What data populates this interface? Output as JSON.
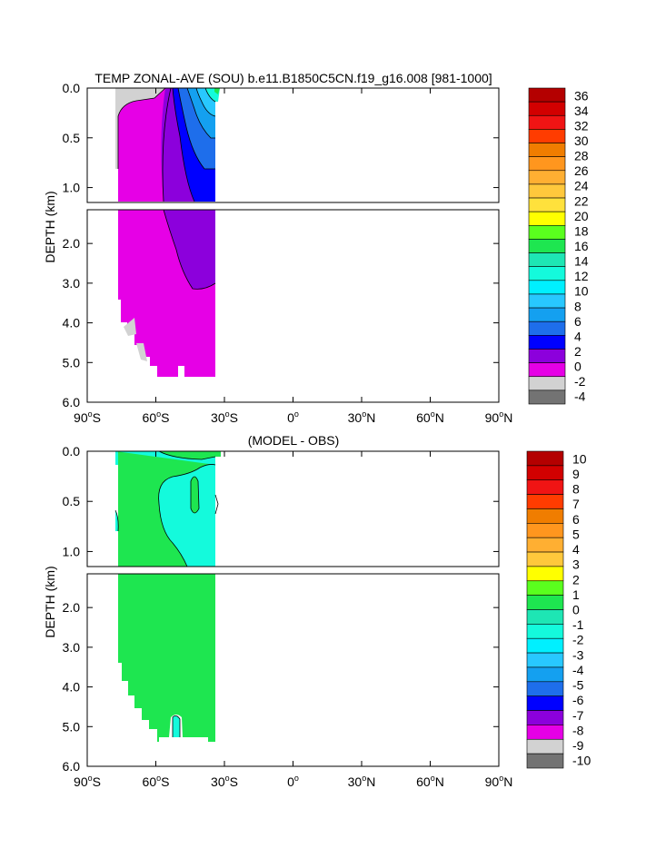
{
  "chart_data": [
    {
      "type": "heatmap",
      "title": "TEMP ZONAL-AVE (SOU) b.e11.B1850C5CN.f19_g16.008 [981-1000]",
      "ylabel": "DEPTH (km)",
      "xlabel": "",
      "x_ticks": [
        "90°S",
        "60°S",
        "30°S",
        "0°",
        "30°N",
        "60°N",
        "90°N"
      ],
      "x_range": [
        -90,
        90
      ],
      "y_range_km": [
        0,
        6
      ],
      "y_ticks_upper": [
        "0.0",
        "0.5",
        "1.0"
      ],
      "y_ticks_lower": [
        "2.0",
        "3.0",
        "4.0",
        "5.0",
        "6.0"
      ],
      "y_split_km": 1.15,
      "data_lat_range": [
        -78,
        -34
      ],
      "colorbar": {
        "labels": [
          "36",
          "34",
          "32",
          "30",
          "28",
          "26",
          "24",
          "22",
          "20",
          "18",
          "16",
          "14",
          "12",
          "10",
          "8",
          "6",
          "4",
          "2",
          "0",
          "-2",
          "-4"
        ],
        "colors": [
          "#b40000",
          "#d20000",
          "#f01414",
          "#ff3c00",
          "#f07d00",
          "#ff961e",
          "#ffaf32",
          "#ffc83c",
          "#ffe13c",
          "#ffff00",
          "#5aff1e",
          "#1ee650",
          "#1ee6b4",
          "#14fadc",
          "#00f0ff",
          "#28c8ff",
          "#14a0f0",
          "#1e6eeb",
          "#0000ff",
          "#8c00dc",
          "#e600e6",
          "#d2d2d2",
          "#737373"
        ]
      },
      "fields": [
        {
          "name": "0 to 2",
          "color": "#e600e6"
        },
        {
          "name": "2 to 4",
          "color": "#8c00dc"
        },
        {
          "name": "4 to 6",
          "color": "#0000ff"
        },
        {
          "name": "6 to 8",
          "color": "#1e6eeb"
        },
        {
          "name": "8 to 10",
          "color": "#14a0f0"
        },
        {
          "name": "10 to 12",
          "color": "#28c8ff"
        },
        {
          "name": "-2 to 0",
          "color": "#d2d2d2"
        }
      ]
    },
    {
      "type": "heatmap",
      "title": "(MODEL - OBS)",
      "ylabel": "DEPTH (km)",
      "xlabel": "",
      "x_ticks": [
        "90°S",
        "60°S",
        "30°S",
        "0°",
        "30°N",
        "60°N",
        "90°N"
      ],
      "x_range": [
        -90,
        90
      ],
      "y_range_km": [
        0,
        6
      ],
      "y_ticks_upper": [
        "0.0",
        "0.5",
        "1.0"
      ],
      "y_ticks_lower": [
        "2.0",
        "3.0",
        "4.0",
        "5.0",
        "6.0"
      ],
      "y_split_km": 1.15,
      "data_lat_range": [
        -78,
        -34
      ],
      "colorbar": {
        "labels": [
          "10",
          "9",
          "8",
          "7",
          "6",
          "5",
          "4",
          "3",
          "2",
          "1",
          "0",
          "-1",
          "-2",
          "-3",
          "-4",
          "-5",
          "-6",
          "-7",
          "-8",
          "-9",
          "-10"
        ],
        "colors": [
          "#b40000",
          "#d20000",
          "#f01414",
          "#ff3c00",
          "#f07d00",
          "#ff961e",
          "#ffaf32",
          "#ffc83c",
          "#ffff00",
          "#5aff1e",
          "#1ee650",
          "#1ee6b4",
          "#14fadc",
          "#00f0ff",
          "#28c8ff",
          "#14a0f0",
          "#1e6eeb",
          "#0000ff",
          "#8c00dc",
          "#e600e6",
          "#d2d2d2",
          "#737373"
        ]
      },
      "fields": [
        {
          "name": "0 to 1",
          "color": "#1ee650"
        },
        {
          "name": "-1 to 0",
          "color": "#14fadc"
        }
      ]
    }
  ]
}
